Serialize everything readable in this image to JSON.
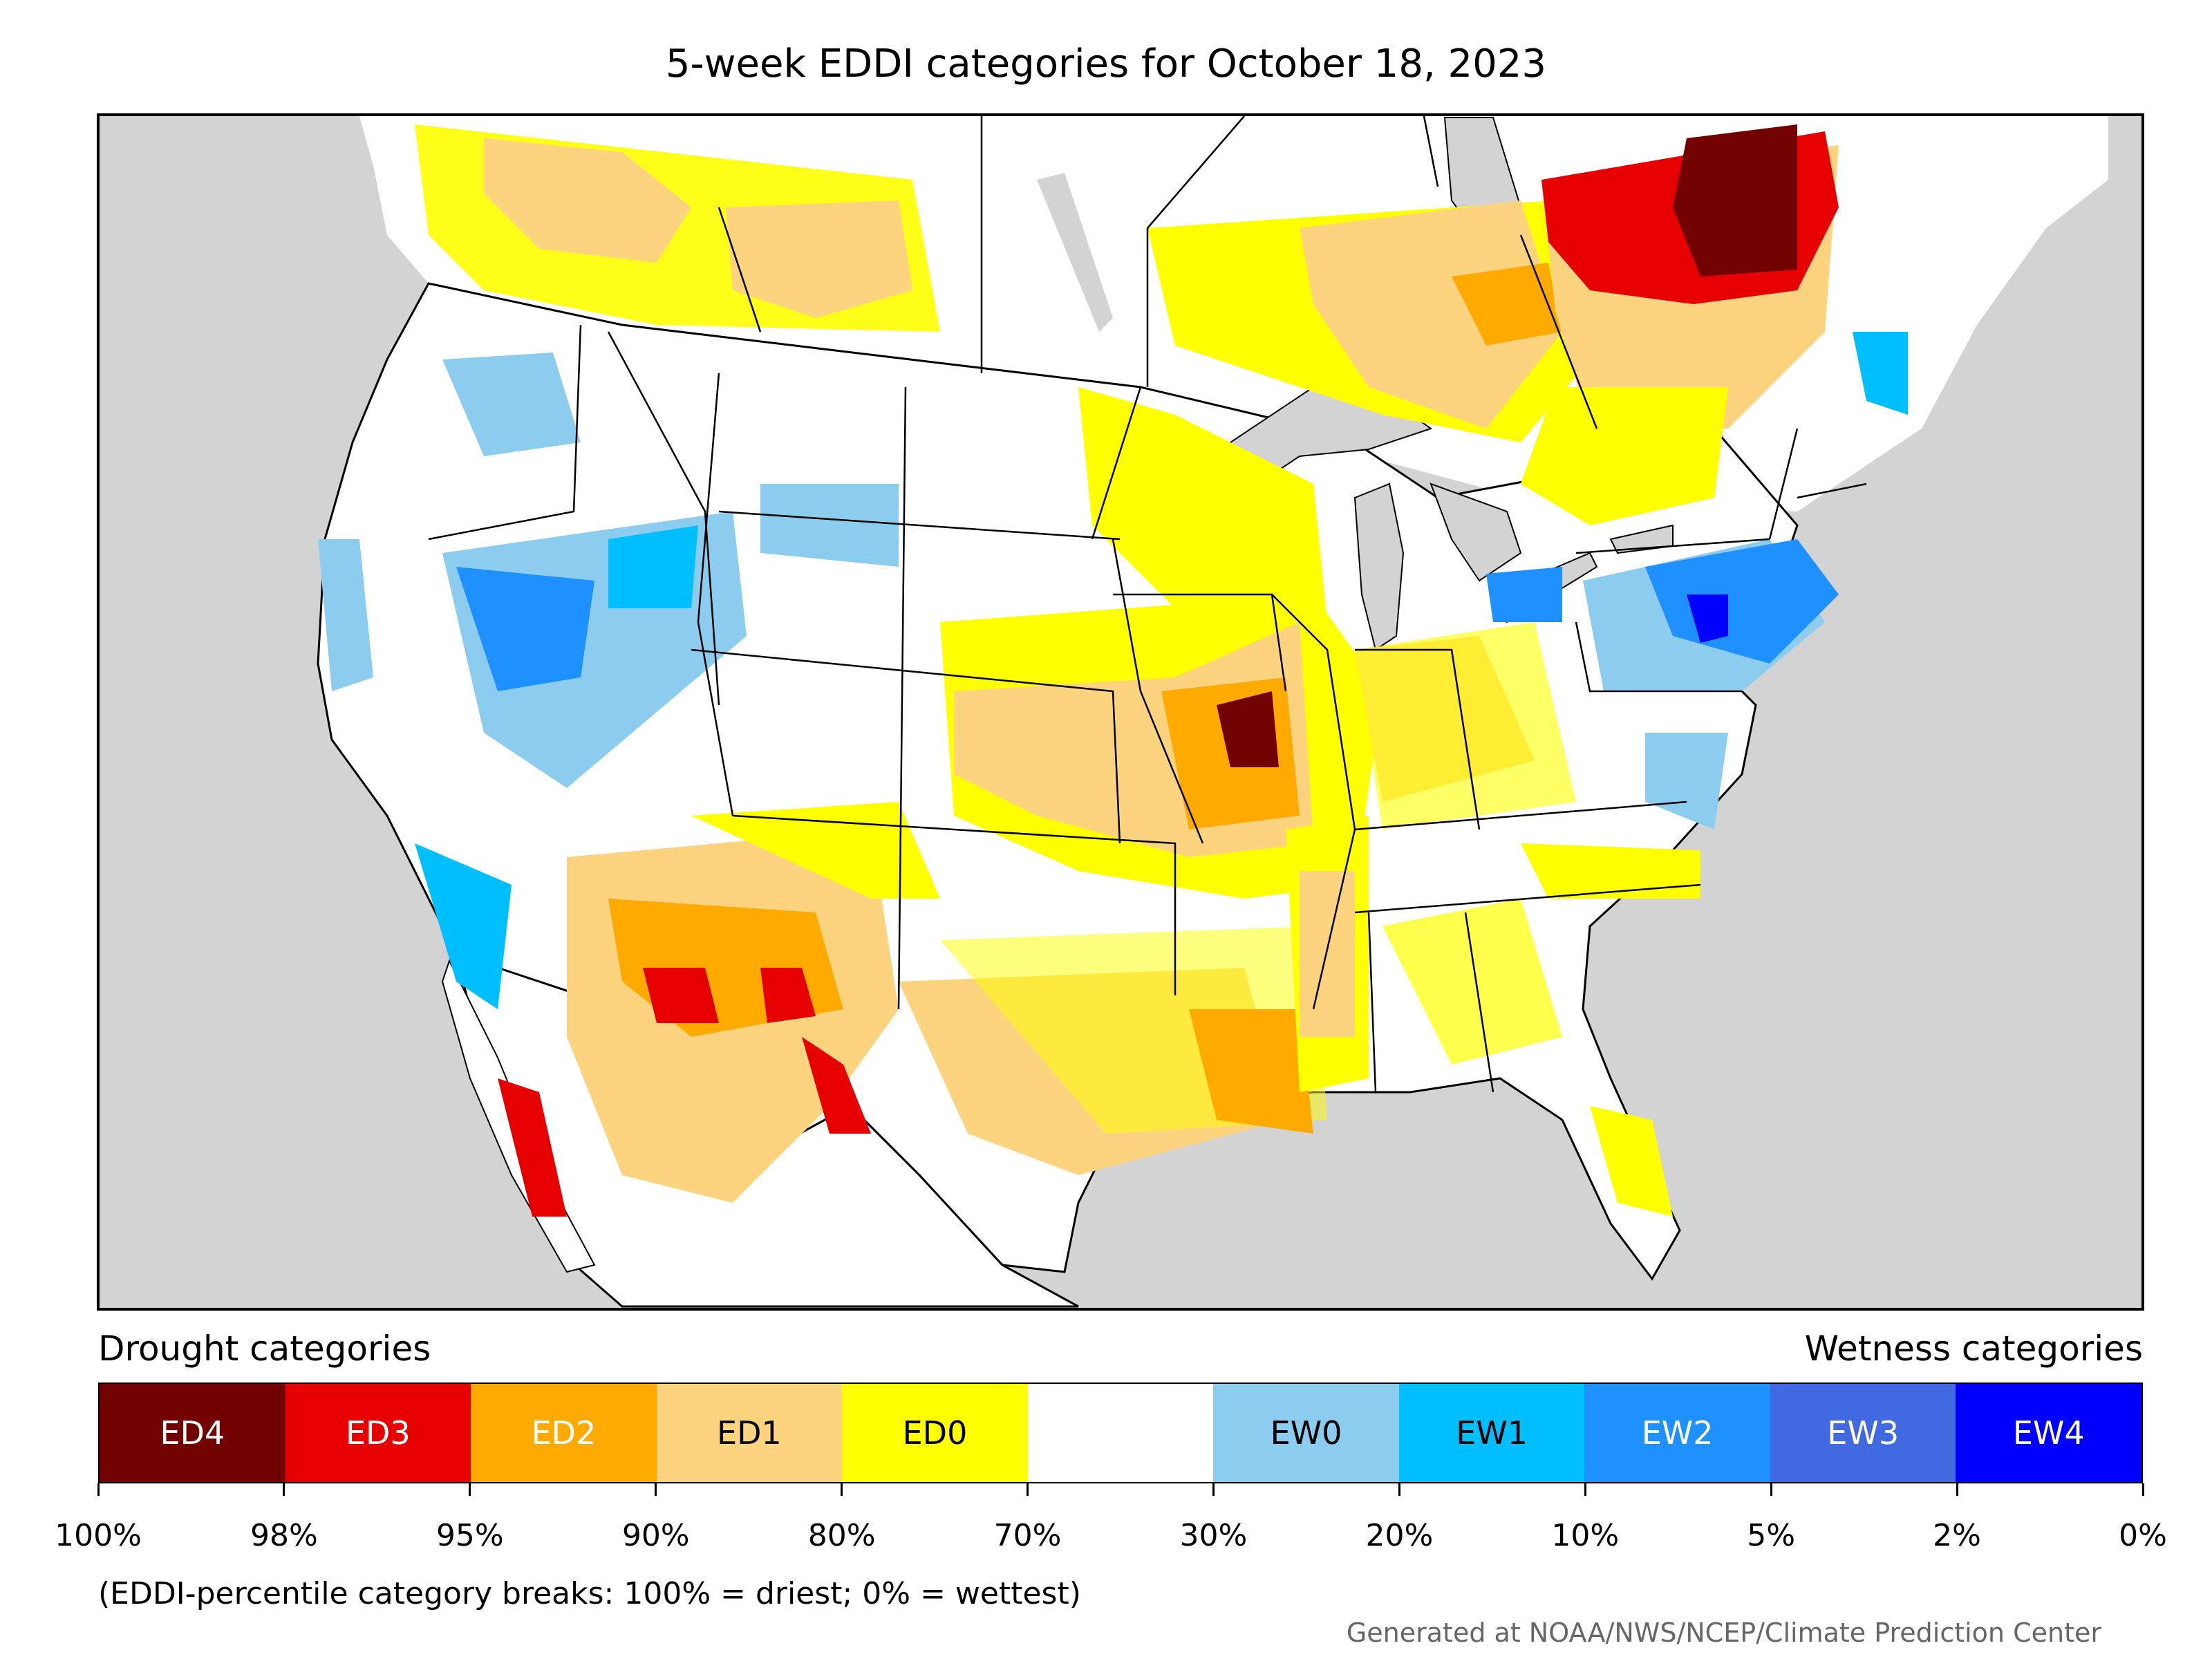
{
  "title": "5-week EDDI categories for October 18, 2023",
  "legend": {
    "drought_title": "Drought categories",
    "wetness_title": "Wetness categories",
    "categories": [
      {
        "label": "ED4",
        "color": "#730000",
        "text_color": "#ffffff"
      },
      {
        "label": "ED3",
        "color": "#e60000",
        "text_color": "#ffffff"
      },
      {
        "label": "ED2",
        "color": "#ffaa00",
        "text_color": "#ffffff"
      },
      {
        "label": "ED1",
        "color": "#fcd37f",
        "text_color": "#000000"
      },
      {
        "label": "ED0",
        "color": "#ffff00",
        "text_color": "#000000"
      },
      {
        "label": "",
        "color": "#ffffff",
        "text_color": "#000000"
      },
      {
        "label": "EW0",
        "color": "#8ccdef",
        "text_color": "#000000"
      },
      {
        "label": "EW1",
        "color": "#00bfff",
        "text_color": "#000000"
      },
      {
        "label": "EW2",
        "color": "#1e90ff",
        "text_color": "#ffffff"
      },
      {
        "label": "EW3",
        "color": "#4169e1",
        "text_color": "#ffffff"
      },
      {
        "label": "EW4",
        "color": "#0000ff",
        "text_color": "#ffffff"
      }
    ],
    "ticks": [
      "100%",
      "98%",
      "95%",
      "90%",
      "80%",
      "70%",
      "30%",
      "20%",
      "10%",
      "5%",
      "2%",
      "0%"
    ]
  },
  "note": "(EDDI-percentile category breaks: 100% = driest; 0% = wettest)",
  "credit": "Generated at NOAA/NWS/NCEP/Climate Prediction Center",
  "map": {
    "background_color": "#d3d3d3",
    "land_color": "#ffffff",
    "border_color": "#000000"
  }
}
